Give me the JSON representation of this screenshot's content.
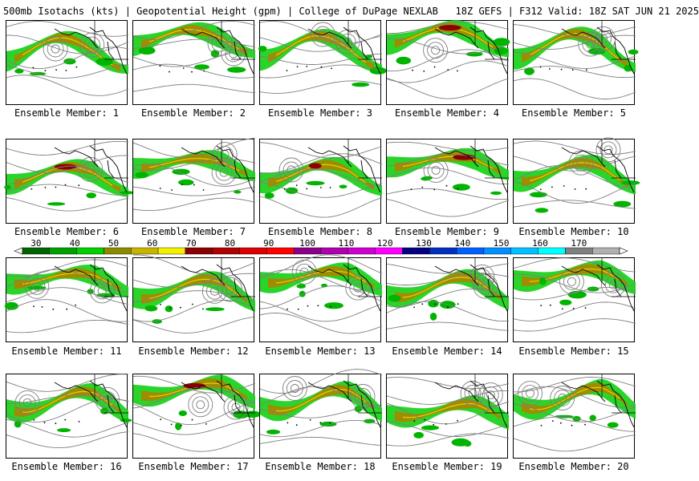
{
  "header": {
    "title": "500mb Isotachs (kts) | Geopotential Height (gpm) | College of DuPage NEXLAB",
    "run": "18Z GEFS | F312 Valid: 18Z SAT JUN 21 2025"
  },
  "colorbar": {
    "ticks": [
      "30",
      "40",
      "50",
      "60",
      "70",
      "80",
      "90",
      "100",
      "110",
      "120",
      "130",
      "140",
      "150",
      "160",
      "170"
    ],
    "colors": [
      "#006400",
      "#00a000",
      "#00d000",
      "#8b8b00",
      "#c8b400",
      "#f0f000",
      "#8b0000",
      "#b00000",
      "#dc0000",
      "#ff0000",
      "#8b008b",
      "#b000b0",
      "#d000d0",
      "#ff00ff",
      "#000080",
      "#0030c0",
      "#0060ff",
      "#0090ff",
      "#00c0ff",
      "#00ffff",
      "#808080",
      "#b0b0b0"
    ]
  },
  "member_label_prefix": "Ensemble Member:",
  "members": [
    {
      "label": "Ensemble Member: 1",
      "max_isotach": "60-70"
    },
    {
      "label": "Ensemble Member: 2",
      "max_isotach": "60-70"
    },
    {
      "label": "Ensemble Member: 3",
      "max_isotach": "60-70"
    },
    {
      "label": "Ensemble Member: 4",
      "max_isotach": "80-90"
    },
    {
      "label": "Ensemble Member: 5",
      "max_isotach": "60-70"
    },
    {
      "label": "Ensemble Member: 6",
      "max_isotach": "80-90"
    },
    {
      "label": "Ensemble Member: 7",
      "max_isotach": "60-70"
    },
    {
      "label": "Ensemble Member: 8",
      "max_isotach": "70-80"
    },
    {
      "label": "Ensemble Member: 9",
      "max_isotach": "80-90"
    },
    {
      "label": "Ensemble Member: 10",
      "max_isotach": "60-70"
    },
    {
      "label": "Ensemble Member: 11",
      "max_isotach": "60-70"
    },
    {
      "label": "Ensemble Member: 12",
      "max_isotach": "60-70"
    },
    {
      "label": "Ensemble Member: 13",
      "max_isotach": "60-70"
    },
    {
      "label": "Ensemble Member: 14",
      "max_isotach": "60-70"
    },
    {
      "label": "Ensemble Member: 15",
      "max_isotach": "60-70"
    },
    {
      "label": "Ensemble Member: 16",
      "max_isotach": "60-70"
    },
    {
      "label": "Ensemble Member: 17",
      "max_isotach": "80-90"
    },
    {
      "label": "Ensemble Member: 18",
      "max_isotach": "60-70"
    },
    {
      "label": "Ensemble Member: 19",
      "max_isotach": "60-70"
    },
    {
      "label": "Ensemble Member: 20",
      "max_isotach": "60-70"
    }
  ],
  "style": {
    "isotach_low": "#00b400",
    "isotach_mid": "#1fd21f",
    "isotach_60": "#a08c00",
    "isotach_70": "#e6d200",
    "isotach_max": "#8b0000",
    "height_contour": "#7f7f7f",
    "coastline": "#000000"
  }
}
